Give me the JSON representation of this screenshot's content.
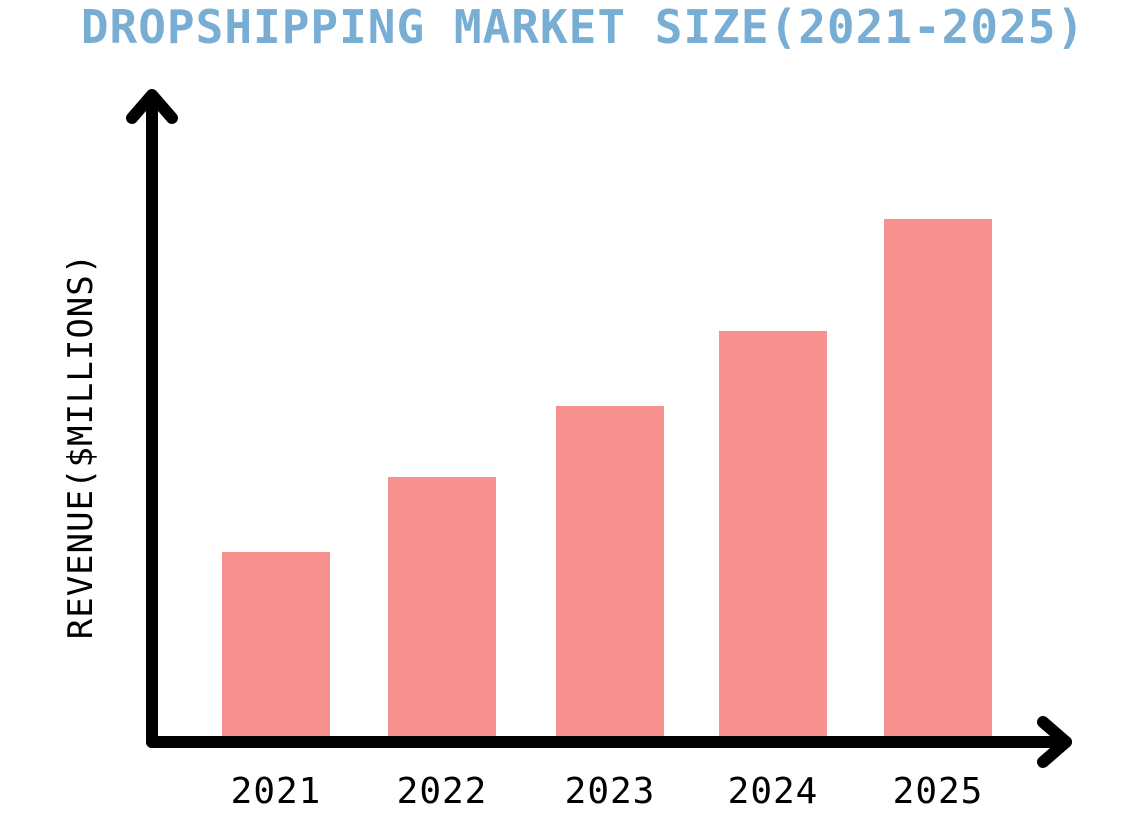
{
  "colors": {
    "title": "#78aed3",
    "bar": "#f69190",
    "axis": "#000000",
    "background": "#ffffff"
  },
  "chart_data": {
    "type": "bar",
    "title": "DROPSHIPPING MARKET SIZE(2021-2025)",
    "xlabel": "",
    "ylabel": "REVENUE($MILLIONS)",
    "categories": [
      "2021",
      "2022",
      "2023",
      "2024",
      "2025"
    ],
    "values": [
      186,
      261,
      332,
      407,
      519
    ],
    "ylim": [
      0,
      600
    ],
    "grid": false,
    "legend": "none",
    "tick_labels_y": false
  }
}
